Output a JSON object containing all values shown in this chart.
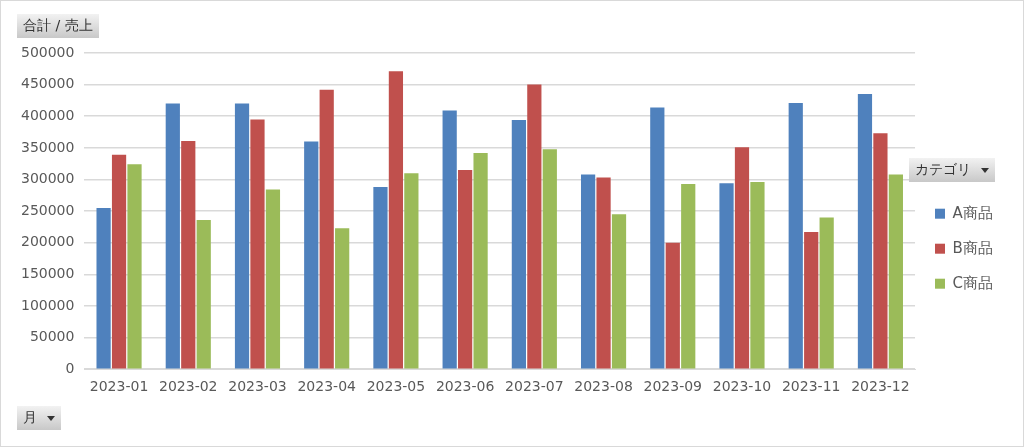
{
  "chart_data": {
    "type": "bar",
    "title": "合計 / 売上",
    "xlabel": "月",
    "legend_title": "カテゴリ",
    "categories": [
      "2023-01",
      "2023-02",
      "2023-03",
      "2023-04",
      "2023-05",
      "2023-06",
      "2023-07",
      "2023-08",
      "2023-09",
      "2023-10",
      "2023-11",
      "2023-12"
    ],
    "series": [
      {
        "name": "A商品",
        "color": "#4f81bd",
        "values": [
          255000,
          420000,
          420000,
          360000,
          288000,
          409000,
          394000,
          308000,
          414000,
          294000,
          421000,
          435000
        ]
      },
      {
        "name": "B商品",
        "color": "#c0504d",
        "values": [
          339000,
          361000,
          395000,
          442000,
          471000,
          315000,
          450000,
          303000,
          200000,
          351000,
          217000,
          373000
        ]
      },
      {
        "name": "C商品",
        "color": "#9bbb59",
        "values": [
          324000,
          236000,
          284000,
          223000,
          310000,
          342000,
          348000,
          245000,
          293000,
          296000,
          240000,
          308000
        ]
      }
    ],
    "ylim": [
      0,
      500000
    ],
    "yticks": [
      0,
      50000,
      100000,
      150000,
      200000,
      250000,
      300000,
      350000,
      400000,
      450000,
      500000
    ],
    "grid": "y",
    "legend": "right"
  }
}
